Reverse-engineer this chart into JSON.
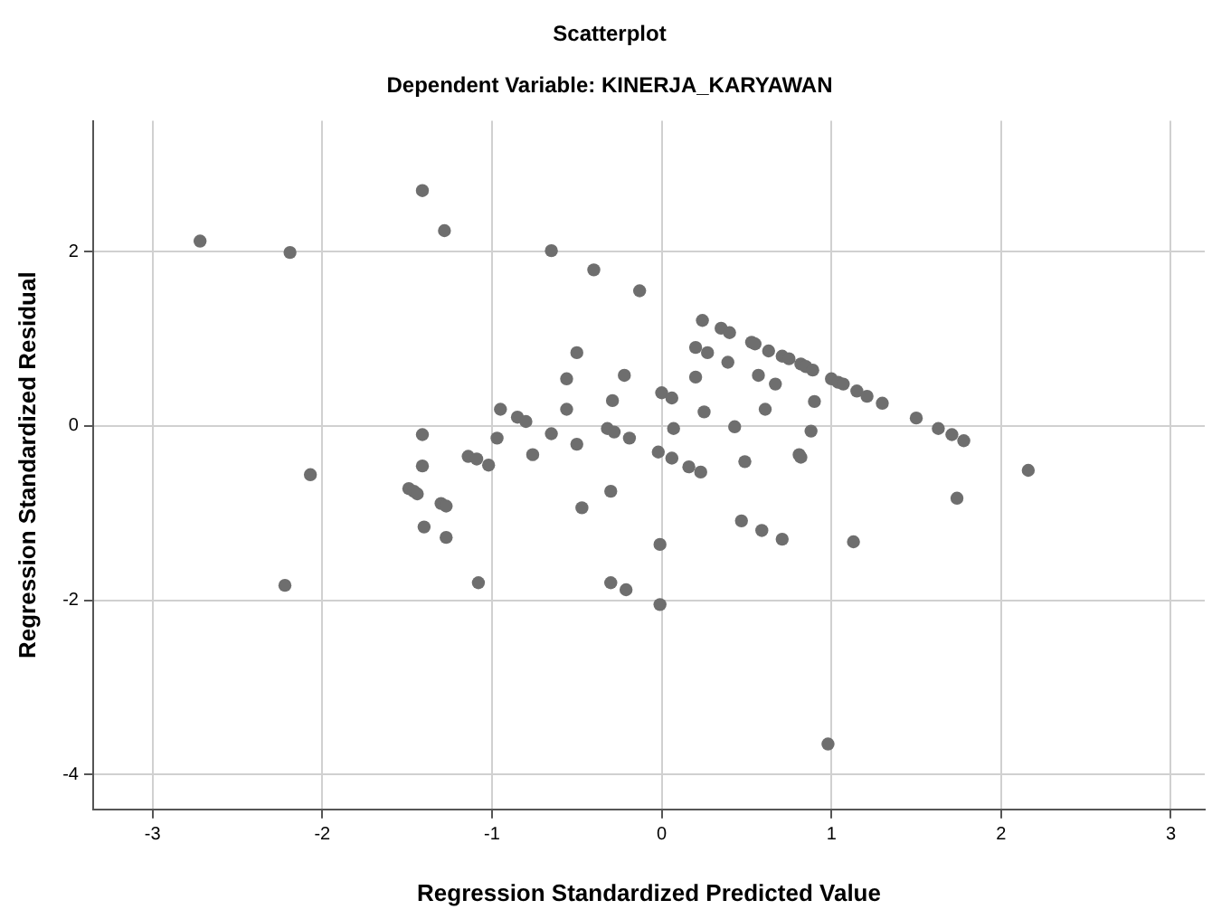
{
  "chart_data": {
    "type": "scatter",
    "title": "Scatterplot",
    "subtitle": "Dependent Variable: KINERJA_KARYAWAN",
    "xlabel": "Regression Standardized Predicted Value",
    "ylabel": "Regression Standardized Residual",
    "xlim": [
      -3.35,
      3.2
    ],
    "ylim": [
      -4.4,
      3.5
    ],
    "xticks": [
      -3,
      -2,
      -1,
      0,
      1,
      2,
      3
    ],
    "yticks": [
      -4,
      -2,
      0,
      2
    ],
    "grid": true,
    "marker": "circle",
    "legend": false,
    "series": [
      {
        "color": "#6e6e6e",
        "x": [
          -2.72,
          -2.19,
          -1.41,
          -1.28,
          -0.65,
          -0.4,
          -0.13,
          -0.56,
          -0.5,
          -0.22,
          -0.29,
          -0.56,
          -0.95,
          -0.85,
          -0.8,
          -1.41,
          -0.97,
          -0.65,
          -0.5,
          -0.32,
          -0.28,
          -0.19,
          -0.76,
          -1.41,
          -2.07,
          -1.49,
          -1.46,
          -1.44,
          -1.3,
          -1.27,
          -1.4,
          -1.27,
          -1.14,
          -1.09,
          -1.02,
          -0.47,
          -0.3,
          -1.08,
          -2.22,
          -0.3,
          -0.21,
          0.24,
          0.35,
          0.4,
          0.53,
          0.55,
          0.63,
          0.71,
          0.75,
          0.82,
          0.85,
          0.89,
          1.0,
          1.04,
          1.07,
          1.15,
          1.21,
          1.3,
          1.5,
          1.63,
          1.71,
          1.78,
          0.2,
          0.27,
          0.39,
          0.2,
          0.57,
          0.67,
          0.9,
          0.0,
          0.06,
          0.25,
          0.61,
          0.07,
          0.43,
          0.88,
          -0.02,
          0.06,
          0.16,
          0.23,
          0.49,
          0.81,
          0.82,
          2.16,
          1.74,
          0.47,
          0.59,
          0.71,
          1.13,
          -0.01,
          -0.01,
          0.98
        ],
        "values": [
          2.12,
          1.99,
          2.7,
          2.24,
          2.01,
          1.79,
          1.55,
          0.54,
          0.84,
          0.58,
          0.29,
          0.19,
          0.19,
          0.1,
          0.05,
          -0.1,
          -0.14,
          -0.09,
          -0.21,
          -0.03,
          -0.07,
          -0.14,
          -0.33,
          -0.46,
          -0.56,
          -0.72,
          -0.75,
          -0.78,
          -0.89,
          -0.92,
          -1.16,
          -1.28,
          -0.35,
          -0.38,
          -0.45,
          -0.94,
          -0.75,
          -1.8,
          -1.83,
          -1.8,
          -1.88,
          1.21,
          1.12,
          1.07,
          0.96,
          0.94,
          0.86,
          0.8,
          0.77,
          0.71,
          0.68,
          0.64,
          0.54,
          0.5,
          0.48,
          0.4,
          0.34,
          0.26,
          0.09,
          -0.03,
          -0.1,
          -0.17,
          0.9,
          0.84,
          0.73,
          0.56,
          0.58,
          0.48,
          0.28,
          0.38,
          0.32,
          0.16,
          0.19,
          -0.03,
          -0.01,
          -0.06,
          -0.3,
          -0.37,
          -0.47,
          -0.53,
          -0.41,
          -0.33,
          -0.36,
          -0.51,
          -0.83,
          -1.09,
          -1.2,
          -1.3,
          -1.33,
          -1.36,
          -2.05,
          -3.65
        ]
      }
    ]
  }
}
